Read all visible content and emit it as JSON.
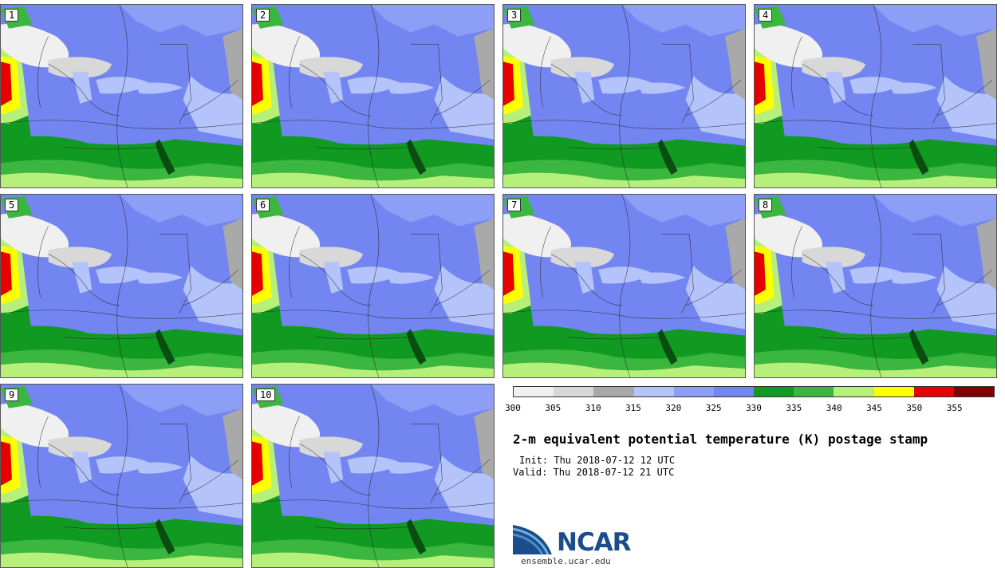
{
  "panels": [
    {
      "member": "1"
    },
    {
      "member": "2"
    },
    {
      "member": "3"
    },
    {
      "member": "4"
    },
    {
      "member": "5"
    },
    {
      "member": "6"
    },
    {
      "member": "7"
    },
    {
      "member": "8"
    },
    {
      "member": "9"
    },
    {
      "member": "10"
    }
  ],
  "legend": {
    "ticks": [
      "300",
      "305",
      "310",
      "315",
      "320",
      "325",
      "330",
      "335",
      "340",
      "345",
      "350",
      "355"
    ],
    "colors": [
      "#f0f0f0",
      "#d8d8d8",
      "#a9a9a9",
      "#b4c3fa",
      "#8c9ef5",
      "#7385f0",
      "#109a22",
      "#3bb63f",
      "#b6f07a",
      "#ffff00",
      "#e60000",
      "#800000"
    ]
  },
  "title": "2-m equivalent potential temperature (K) postage stamp",
  "init": "Init: Thu 2018-07-12 12 UTC",
  "valid": "Valid: Thu 2018-07-12 21 UTC",
  "logo": {
    "name": "NCAR",
    "site": "ensemble.ucar.edu"
  }
}
